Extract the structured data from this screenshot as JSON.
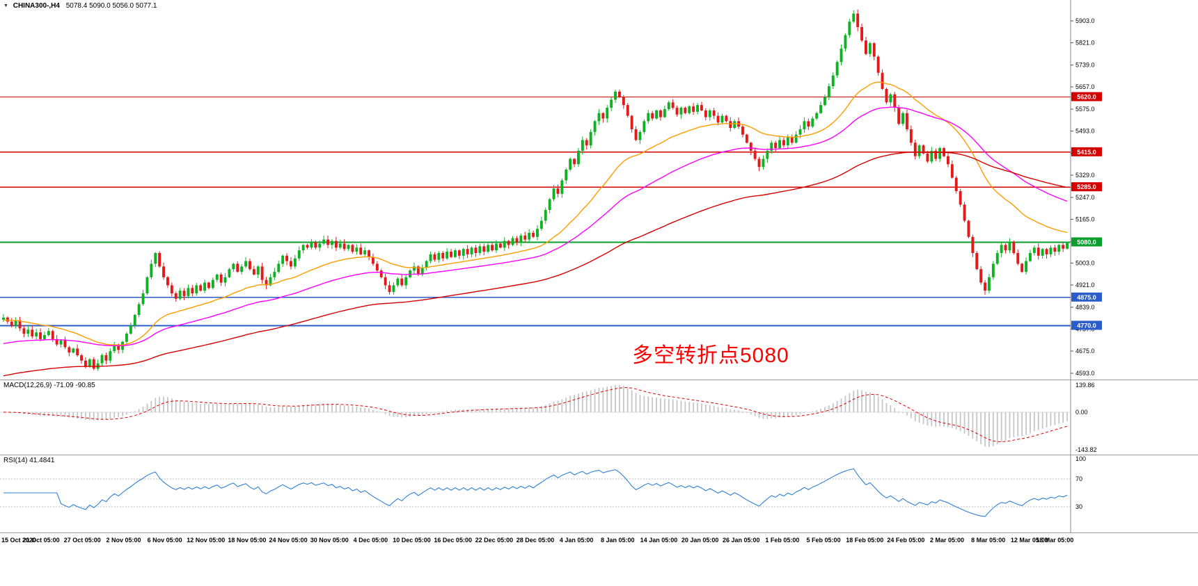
{
  "title_bar": {
    "dropdown_icon": "▼",
    "symbol": "CHINA300-,H4",
    "ohlc": "5078.4 5090.0 5056.0 5077.1"
  },
  "chart_data": {
    "type": "candlestick",
    "symbol": "CHINA300-",
    "timeframe": "H4",
    "current_bar": {
      "open": 5078.4,
      "high": 5090.0,
      "low": 5056.0,
      "close": 5077.1
    },
    "price_axis": {
      "ticks": [
        "5903.0",
        "5821.0",
        "5739.0",
        "5657.0",
        "5575.0",
        "5493.0",
        "5411.0",
        "5329.0",
        "5247.0",
        "5165.0",
        "5083.0",
        "5003.0",
        "4921.0",
        "4839.0",
        "4757.0",
        "4675.0",
        "4593.0"
      ]
    },
    "closes": [
      4800,
      4785,
      4770,
      4790,
      4760,
      4740,
      4755,
      4730,
      4745,
      4720,
      4735,
      4750,
      4720,
      4700,
      4715,
      4690,
      4670,
      4685,
      4660,
      4640,
      4620,
      4645,
      4610,
      4630,
      4660,
      4640,
      4675,
      4700,
      4680,
      4710,
      4740,
      4770,
      4810,
      4850,
      4890,
      4950,
      5000,
      5040,
      4990,
      4950,
      4920,
      4890,
      4870,
      4900,
      4880,
      4910,
      4890,
      4920,
      4900,
      4930,
      4910,
      4940,
      4960,
      4930,
      4950,
      4980,
      5000,
      4970,
      4990,
      5010,
      4980,
      4960,
      4990,
      4940,
      4920,
      4950,
      4970,
      5000,
      5030,
      5010,
      4990,
      5020,
      5050,
      5070,
      5060,
      5080,
      5060,
      5075,
      5090,
      5070,
      5085,
      5060,
      5075,
      5055,
      5070,
      5045,
      5060,
      5035,
      5050,
      5025,
      5000,
      4975,
      4950,
      4920,
      4895,
      4920,
      4945,
      4920,
      4950,
      4975,
      4990,
      4960,
      4985,
      5010,
      5035,
      5015,
      5040,
      5020,
      5045,
      5025,
      5050,
      5030,
      5055,
      5035,
      5060,
      5040,
      5065,
      5045,
      5070,
      5050,
      5075,
      5060,
      5085,
      5070,
      5095,
      5080,
      5105,
      5090,
      5115,
      5100,
      5130,
      5160,
      5200,
      5240,
      5280,
      5260,
      5310,
      5350,
      5390,
      5370,
      5420,
      5460,
      5440,
      5490,
      5530,
      5560,
      5540,
      5580,
      5610,
      5640,
      5620,
      5590,
      5550,
      5500,
      5460,
      5490,
      5530,
      5560,
      5540,
      5570,
      5545,
      5575,
      5600,
      5580,
      5555,
      5580,
      5560,
      5585,
      5565,
      5590,
      5570,
      5545,
      5570,
      5550,
      5525,
      5550,
      5530,
      5505,
      5530,
      5510,
      5480,
      5450,
      5420,
      5390,
      5360,
      5390,
      5420,
      5450,
      5430,
      5460,
      5440,
      5470,
      5450,
      5480,
      5500,
      5530,
      5510,
      5540,
      5560,
      5590,
      5620,
      5660,
      5700,
      5750,
      5800,
      5850,
      5900,
      5930,
      5880,
      5830,
      5780,
      5820,
      5770,
      5710,
      5650,
      5600,
      5630,
      5580,
      5520,
      5560,
      5500,
      5450,
      5400,
      5440,
      5410,
      5380,
      5420,
      5390,
      5430,
      5400,
      5370,
      5320,
      5270,
      5220,
      5160,
      5100,
      5040,
      4980,
      4930,
      4900,
      4950,
      5000,
      5040,
      5070,
      5050,
      5080,
      5040,
      5000,
      4970,
      5010,
      5040,
      5060,
      5030,
      5055,
      5035,
      5060,
      5045,
      5070,
      5056,
      5077
    ],
    "hlines": [
      {
        "price": 5620,
        "label": "5620.0",
        "type": "resistance"
      },
      {
        "price": 5415,
        "label": "5415.0",
        "type": "resistance"
      },
      {
        "price": 5285,
        "label": "5285.0",
        "type": "resistance"
      },
      {
        "price": 5080,
        "label": "5080.0",
        "type": "pivot"
      },
      {
        "price": 4875,
        "label": "4875.0",
        "type": "support"
      },
      {
        "price": 4770,
        "label": "4770.0",
        "type": "support"
      }
    ],
    "moving_averages": [
      {
        "name": "ma-fast",
        "period": 30,
        "seed": 4790,
        "color": "#ff9c00"
      },
      {
        "name": "ma-mid",
        "period": 60,
        "seed": 4700,
        "color": "#ff00ff"
      },
      {
        "name": "ma-slow",
        "period": 130,
        "seed": 4580,
        "color": "#d60000"
      }
    ],
    "annotation": {
      "text": "多空转折点5080",
      "color": "#ff0000"
    },
    "macd": {
      "label": "MACD(12,26,9) -71.09 -90.85",
      "params": [
        12,
        26,
        9
      ],
      "values_display": [
        "-71.09",
        "-90.85"
      ],
      "axis_ticks": [
        "139.86",
        "0.00",
        "-143.82"
      ]
    },
    "rsi": {
      "label": "RSI(14) 41.4841",
      "period": 14,
      "value_display": "41.4841",
      "axis_ticks": [
        "100",
        "70",
        "30"
      ],
      "levels": [
        70,
        30
      ]
    },
    "time_labels": [
      "15 Oct 2020",
      "21 Oct 05:00",
      "27 Oct 05:00",
      "2 Nov 05:00",
      "6 Nov 05:00",
      "12 Nov 05:00",
      "18 Nov 05:00",
      "24 Nov 05:00",
      "30 Nov 05:00",
      "4 Dec 05:00",
      "10 Dec 05:00",
      "16 Dec 05:00",
      "22 Dec 05:00",
      "28 Dec 05:00",
      "4 Jan 05:00",
      "8 Jan 05:00",
      "14 Jan 05:00",
      "20 Jan 05:00",
      "26 Jan 05:00",
      "1 Feb 05:00",
      "5 Feb 05:00",
      "18 Feb 05:00",
      "24 Feb 05:00",
      "2 Mar 05:00",
      "8 Mar 05:00",
      "12 Mar 05:00",
      "18 Mar 05:00"
    ],
    "colors": {
      "up": "#10b224",
      "down": "#e31a1a",
      "resistance": "#d40000",
      "support": "#2b5cc8",
      "pivot": "#089f2e",
      "macd_hist": "#c6c6c6",
      "macd_signal": "#e00000",
      "rsi_line": "#2d7fd6",
      "axis_text": "#000000"
    }
  }
}
